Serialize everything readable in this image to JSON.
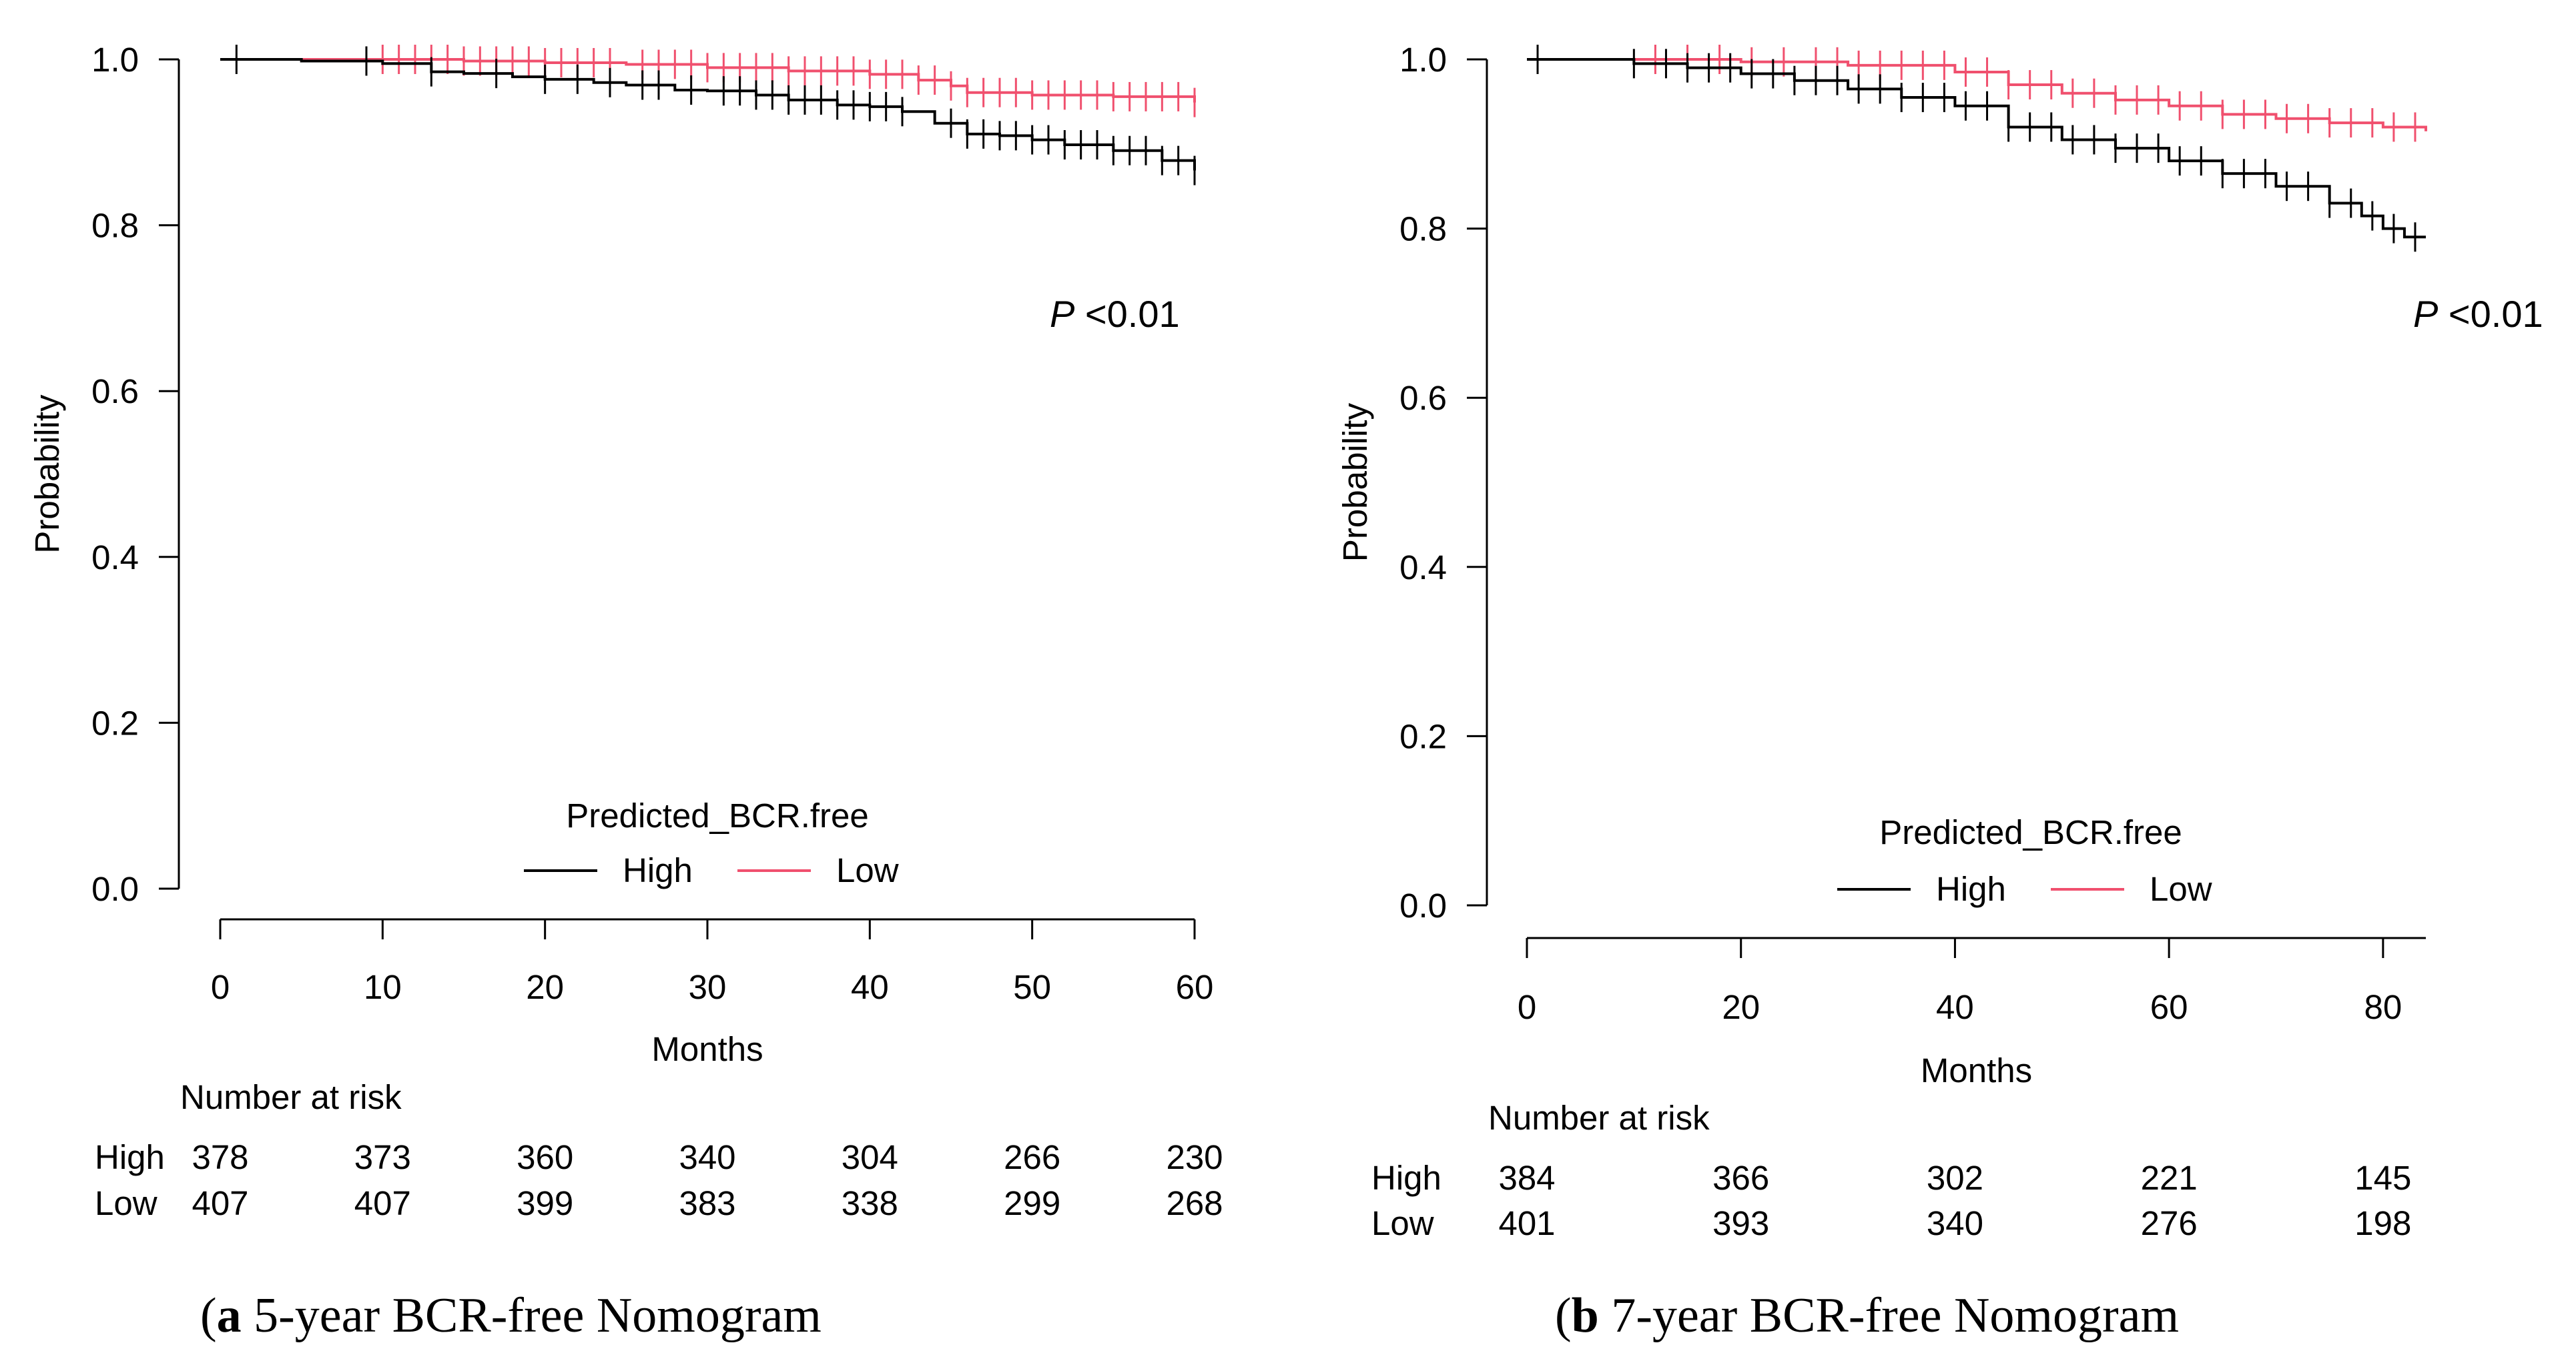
{
  "colors": {
    "high": "#000000",
    "low": "#f0506e",
    "axis": "#000000"
  },
  "captions": [
    {
      "label": "a",
      "text": " 5-year BCR-free Nomogram"
    },
    {
      "label": "b",
      "text": " 7-year BCR-free Nomogram"
    }
  ],
  "chart_data": [
    {
      "type": "line",
      "title": "",
      "xlabel": "Months",
      "ylabel": "Probability",
      "xlim": [
        0,
        60
      ],
      "ylim": [
        0,
        1
      ],
      "xticks": [
        0,
        10,
        20,
        30,
        40,
        50,
        60
      ],
      "yticks": [
        "0.0",
        "0.2",
        "0.4",
        "0.6",
        "0.8",
        "1.0"
      ],
      "pvalue": {
        "italic": "P",
        "rest": " <0.01"
      },
      "legend": {
        "title": "Predicted_BCR.free",
        "entries": [
          "High",
          "Low"
        ],
        "placement": "bottom-center"
      },
      "series": [
        {
          "name": "High",
          "x": [
            0,
            5,
            10,
            13,
            15,
            18,
            20,
            23,
            25,
            28,
            30,
            33,
            35,
            38,
            40,
            42,
            44,
            46,
            48,
            50,
            52,
            55,
            58,
            60
          ],
          "y": [
            1.0,
            0.998,
            0.995,
            0.985,
            0.983,
            0.979,
            0.976,
            0.972,
            0.969,
            0.963,
            0.962,
            0.957,
            0.951,
            0.945,
            0.943,
            0.937,
            0.923,
            0.91,
            0.908,
            0.903,
            0.897,
            0.89,
            0.878,
            0.866
          ],
          "censor_x": [
            1,
            9,
            13,
            17,
            20,
            22,
            24,
            26,
            27,
            29,
            31,
            32,
            33,
            34,
            35,
            36,
            37,
            38,
            39,
            40,
            41,
            42,
            45,
            46,
            47,
            48,
            49,
            50,
            51,
            52,
            53,
            54,
            55,
            56,
            57,
            58,
            59,
            60
          ]
        },
        {
          "name": "Low",
          "x": [
            0,
            10,
            15,
            20,
            25,
            30,
            35,
            40,
            43,
            45,
            46,
            50,
            55,
            60
          ],
          "y": [
            1.0,
            1.0,
            0.998,
            0.996,
            0.994,
            0.99,
            0.986,
            0.982,
            0.975,
            0.968,
            0.96,
            0.957,
            0.955,
            0.948
          ],
          "censor_x": [
            10,
            11,
            12,
            13,
            14,
            15,
            16,
            17,
            18,
            19,
            20,
            21,
            22,
            23,
            24,
            26,
            27,
            28,
            29,
            30,
            31,
            32,
            33,
            34,
            35,
            36,
            37,
            38,
            39,
            40,
            41,
            42,
            43,
            44,
            45,
            46,
            47,
            48,
            49,
            50,
            51,
            52,
            53,
            54,
            55,
            56,
            57,
            58,
            59,
            60
          ]
        }
      ],
      "risk_table": {
        "title": "Number at risk",
        "times": [
          0,
          10,
          20,
          30,
          40,
          50,
          60
        ],
        "rows": [
          {
            "label": "High",
            "values": [
              "378",
              "373",
              "360",
              "340",
              "304",
              "266",
              "230"
            ]
          },
          {
            "label": "Low",
            "values": [
              "407",
              "407",
              "399",
              "383",
              "338",
              "299",
              "268"
            ]
          }
        ]
      }
    },
    {
      "type": "line",
      "title": "",
      "xlabel": "Months",
      "ylabel": "Probability",
      "xlim": [
        0,
        84
      ],
      "ylim": [
        0,
        1
      ],
      "xticks": [
        0,
        20,
        40,
        60,
        80
      ],
      "yticks": [
        "0.0",
        "0.2",
        "0.4",
        "0.6",
        "0.8",
        "1.0"
      ],
      "pvalue": {
        "italic": "P",
        "rest": " <0.01"
      },
      "legend": {
        "title": "Predicted_BCR.free",
        "entries": [
          "High",
          "Low"
        ],
        "placement": "bottom-center"
      },
      "series": [
        {
          "name": "High",
          "x": [
            0,
            5,
            10,
            15,
            20,
            25,
            30,
            35,
            40,
            45,
            50,
            55,
            60,
            65,
            70,
            75,
            78,
            80,
            82,
            84
          ],
          "y": [
            1.0,
            1.0,
            0.995,
            0.99,
            0.983,
            0.975,
            0.965,
            0.955,
            0.945,
            0.92,
            0.905,
            0.895,
            0.88,
            0.865,
            0.85,
            0.83,
            0.815,
            0.8,
            0.79,
            0.79
          ],
          "censor_x": [
            1,
            10,
            13,
            15,
            17,
            19,
            21,
            23,
            25,
            27,
            29,
            31,
            33,
            35,
            37,
            39,
            41,
            43,
            45,
            47,
            49,
            51,
            53,
            55,
            57,
            59,
            61,
            63,
            65,
            67,
            69,
            71,
            73,
            75,
            77,
            79,
            81,
            83
          ]
        },
        {
          "name": "Low",
          "x": [
            0,
            10,
            20,
            30,
            40,
            45,
            50,
            55,
            60,
            65,
            70,
            75,
            80,
            84
          ],
          "y": [
            1.0,
            1.0,
            0.997,
            0.993,
            0.985,
            0.97,
            0.96,
            0.952,
            0.945,
            0.935,
            0.93,
            0.925,
            0.92,
            0.915
          ],
          "censor_x": [
            12,
            15,
            18,
            21,
            24,
            27,
            29,
            31,
            33,
            35,
            37,
            39,
            41,
            43,
            45,
            47,
            49,
            51,
            53,
            55,
            57,
            59,
            61,
            63,
            65,
            67,
            69,
            71,
            73,
            75,
            77,
            79,
            81,
            83
          ]
        }
      ],
      "risk_table": {
        "title": "Number at risk",
        "times": [
          0,
          20,
          40,
          60,
          80
        ],
        "rows": [
          {
            "label": "High",
            "values": [
              "384",
              "366",
              "302",
              "221",
              "145"
            ]
          },
          {
            "label": "Low",
            "values": [
              "401",
              "393",
              "340",
              "276",
              "198"
            ]
          }
        ]
      }
    }
  ]
}
